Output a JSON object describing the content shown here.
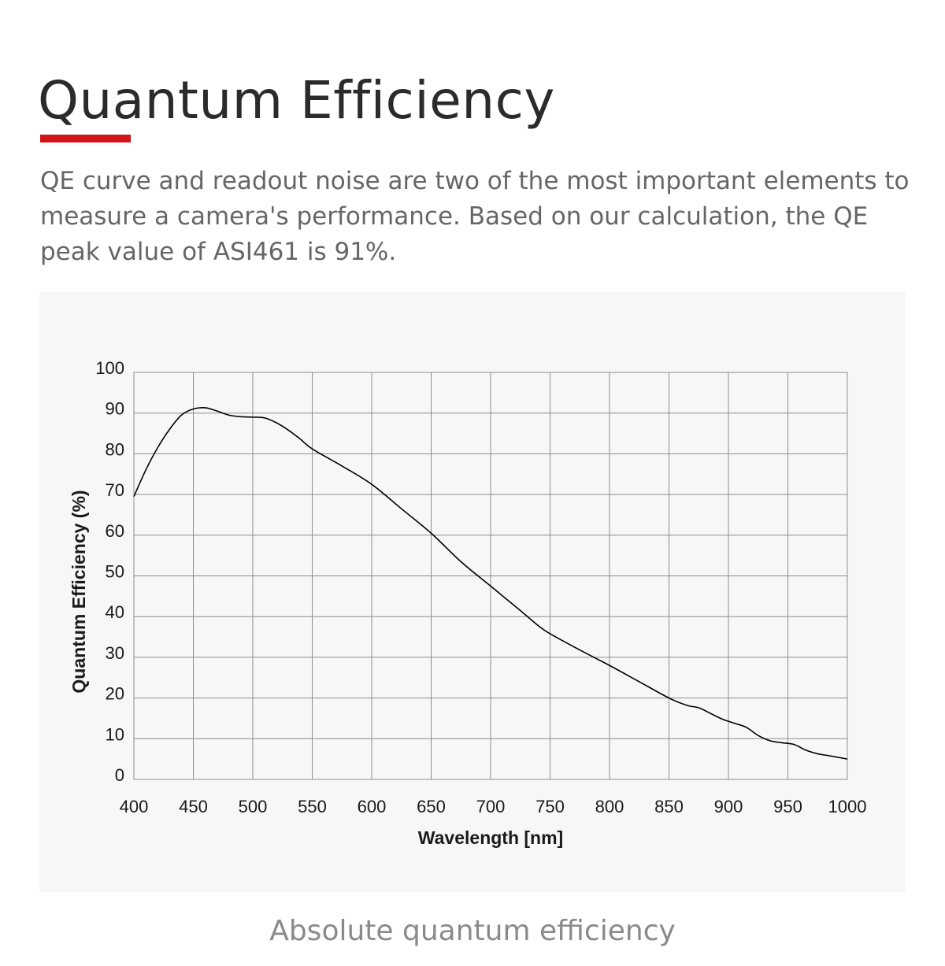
{
  "header": {
    "title": "Quantum Efficiency",
    "accent_color": "#d3151a"
  },
  "intro": {
    "text": "QE curve and readout noise are two of the most important elements to measure a camera's performance. Based on our calculation, the QE peak value of ASI461 is 91%."
  },
  "chart_data": {
    "type": "line",
    "title": "",
    "xlabel": "Wavelength [nm]",
    "ylabel": "Quantum Efficiency (%)",
    "xlim": [
      400,
      1000
    ],
    "ylim": [
      0,
      100
    ],
    "xticks": [
      "400",
      "450",
      "500",
      "550",
      "600",
      "650",
      "700",
      "750",
      "800",
      "850",
      "900",
      "950",
      "1000"
    ],
    "yticks": [
      "0",
      "10",
      "20",
      "30",
      "40",
      "50",
      "60",
      "70",
      "80",
      "90",
      "100"
    ],
    "grid": true,
    "legend": "none",
    "line_color": "#000000",
    "series": [
      {
        "x": [
          400,
          410,
          420,
          430,
          440,
          450,
          460,
          470,
          480,
          490,
          500,
          510,
          520,
          530,
          540,
          550,
          575,
          600,
          625,
          650,
          675,
          700,
          725,
          740,
          750,
          775,
          800,
          825,
          850,
          865,
          875,
          885,
          895,
          905,
          915,
          925,
          935,
          945,
          955,
          965,
          975,
          985,
          1000
        ],
        "y": [
          69.5,
          76,
          81.5,
          86,
          89.5,
          91,
          91.3,
          90.5,
          89.5,
          89.1,
          89,
          88.8,
          87.6,
          85.8,
          83.6,
          81.2,
          77,
          72.5,
          66.5,
          60.5,
          53.5,
          47.5,
          41.5,
          37.8,
          35.8,
          31.8,
          28,
          24,
          20,
          18.2,
          17.6,
          16.2,
          14.8,
          13.8,
          12.8,
          10.8,
          9.5,
          9,
          8.6,
          7.2,
          6.3,
          5.8,
          5
        ]
      }
    ]
  },
  "caption": {
    "text": "Absolute quantum efficiency"
  }
}
